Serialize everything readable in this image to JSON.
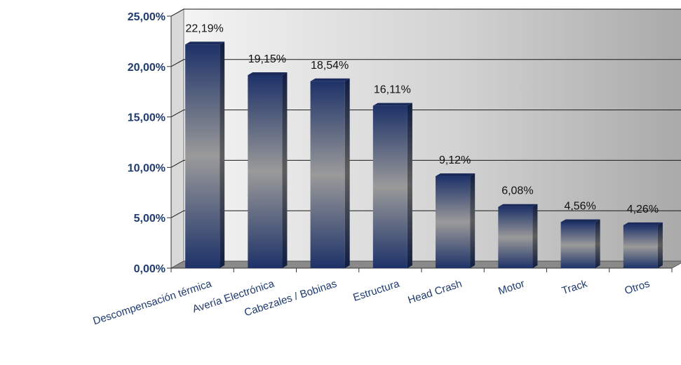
{
  "chart_data": {
    "type": "bar",
    "title": "",
    "xlabel": "",
    "ylabel": "",
    "categories": [
      "Descompensación térmica",
      "Avería Electrónica",
      "Cabezales / Bobinas",
      "Estructura",
      "Head Crash",
      "Motor",
      "Track",
      "Otros"
    ],
    "values": [
      22.19,
      19.15,
      18.54,
      16.11,
      9.12,
      6.08,
      4.56,
      4.26
    ],
    "data_labels": [
      "22,19%",
      "19,15%",
      "18,54%",
      "16,11%",
      "9,12%",
      "6,08%",
      "4,56%",
      "4,26%"
    ],
    "yticks": [
      0,
      5,
      10,
      15,
      20,
      25
    ],
    "ytick_labels": [
      "0,00%",
      "5,00%",
      "10,00%",
      "15,00%",
      "20,00%",
      "25,00%"
    ],
    "ylim": [
      0,
      25
    ],
    "grid": true,
    "legend": "none",
    "colors": {
      "bar_dark": "#1e3268",
      "bar_mid": "#9a9a9a",
      "wall_light": "#f2f2f2",
      "wall_dark": "#a8a8a8",
      "floor": "#8a8a8a",
      "axis_text": "#1f3a6e"
    }
  }
}
